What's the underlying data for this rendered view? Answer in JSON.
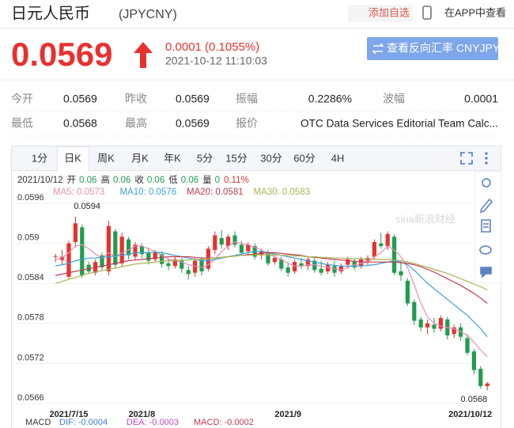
{
  "header": {
    "title": "日元人民币",
    "code": "(JPYCNY)",
    "add_watch": "添加自选",
    "app_link": "在APP中查看"
  },
  "quote": {
    "price": "0.0569",
    "change": "0.0001 (0.1055%)",
    "time": "2021-10-12 11:10:03",
    "reverse_button": "查看反向汇率 CNYJPY"
  },
  "stats": {
    "rows": [
      [
        {
          "label": "今开",
          "value": "0.0569"
        },
        {
          "label": "昨收",
          "value": "0.0569"
        },
        {
          "label": "振幅",
          "value": "0.2286%"
        },
        {
          "label": "波幅",
          "value": "0.0001"
        }
      ],
      [
        {
          "label": "最低",
          "value": "0.0568"
        },
        {
          "label": "最高",
          "value": "0.0569"
        },
        {
          "label": "报价",
          "value": "OTC Data Services Editorial Team Calc..."
        }
      ]
    ]
  },
  "tabs": [
    "1分",
    "日K",
    "周K",
    "月K",
    "年K",
    "5分",
    "15分",
    "30分",
    "60分",
    "4H"
  ],
  "watermark": "sina新浪财经",
  "chart_data": {
    "type": "candlestick",
    "info": {
      "date": "2021/10/12",
      "fields": [
        [
          "开",
          "0.06"
        ],
        [
          "高",
          "0.06"
        ],
        [
          "收",
          "0.06"
        ],
        [
          "低",
          "0.06"
        ],
        [
          "量",
          "0"
        ]
      ],
      "change": "0.11%"
    },
    "categories": [
      null,
      null,
      "2021/7/15",
      null,
      null,
      null,
      null,
      null,
      null,
      null,
      null,
      null,
      null,
      "2021/8",
      null,
      null,
      null,
      null,
      null,
      null,
      null,
      null,
      null,
      null,
      null,
      null,
      null,
      null,
      null,
      null,
      null,
      null,
      null,
      null,
      null,
      "2021/9",
      null,
      null,
      null,
      null,
      null,
      null,
      null,
      null,
      null,
      null,
      null,
      null,
      null,
      null,
      null,
      null,
      null,
      null,
      null,
      null,
      null,
      null,
      null,
      null,
      null,
      null,
      null,
      null,
      null,
      "2021/10/12"
    ],
    "open": [
      0.0588,
      0.05875,
      0.0585,
      0.05902,
      0.05924,
      0.05868,
      0.05856,
      0.05882,
      0.05858,
      0.05918,
      0.0587,
      0.05906,
      0.0588,
      0.05896,
      0.05886,
      0.05876,
      0.05884,
      0.0587,
      0.05866,
      0.05874,
      0.0586,
      0.05856,
      0.05876,
      0.05862,
      0.0589,
      0.05908,
      0.05896,
      0.05912,
      0.05898,
      0.05888,
      0.05896,
      0.05882,
      0.05886,
      0.05872,
      0.05876,
      0.05864,
      0.05858,
      0.0587,
      0.05866,
      0.05874,
      0.05862,
      0.05858,
      0.05866,
      0.05858,
      0.05868,
      0.05874,
      0.05866,
      0.05874,
      0.0588,
      0.059,
      0.05896,
      0.0591,
      0.05858,
      0.05844,
      0.05812,
      0.05786,
      0.05774,
      0.05778,
      0.05772,
      0.05786,
      0.05764,
      0.05774,
      0.05758,
      0.05738,
      0.05712,
      0.05686
    ],
    "high": [
      0.05884,
      0.0589,
      0.05904,
      0.0594,
      0.05928,
      0.05873,
      0.05876,
      0.05886,
      0.05934,
      0.05922,
      0.05916,
      0.0591,
      0.05902,
      0.059,
      0.05894,
      0.0589,
      0.05888,
      0.05878,
      0.0588,
      0.05878,
      0.05866,
      0.05878,
      0.0588,
      0.05896,
      0.05918,
      0.0592,
      0.05914,
      0.05918,
      0.05904,
      0.05902,
      0.059,
      0.05892,
      0.0589,
      0.05882,
      0.0588,
      0.05872,
      0.05876,
      0.05878,
      0.0588,
      0.05878,
      0.05874,
      0.05872,
      0.05874,
      0.0587,
      0.0588,
      0.05878,
      0.0588,
      0.05882,
      0.05906,
      0.05916,
      0.05918,
      0.05914,
      0.0587,
      0.05848,
      0.05816,
      0.0579,
      0.05786,
      0.05788,
      0.05792,
      0.0579,
      0.05778,
      0.0578,
      0.05764,
      0.05742,
      0.05716,
      0.05692
    ],
    "low": [
      0.05872,
      0.05868,
      0.05846,
      0.05894,
      0.05848,
      0.05854,
      0.05852,
      0.0586,
      0.05852,
      0.05862,
      0.05865,
      0.05876,
      0.05874,
      0.05878,
      0.05868,
      0.05872,
      0.05864,
      0.0586,
      0.05862,
      0.05856,
      0.05846,
      0.0585,
      0.05852,
      0.05858,
      0.05884,
      0.05892,
      0.0589,
      0.05894,
      0.05882,
      0.05882,
      0.05876,
      0.05876,
      0.05866,
      0.05868,
      0.05858,
      0.0585,
      0.05854,
      0.05862,
      0.0586,
      0.05856,
      0.05852,
      0.05854,
      0.0585,
      0.05854,
      0.05862,
      0.0586,
      0.05862,
      0.05868,
      0.05876,
      0.05892,
      0.0589,
      0.05852,
      0.05844,
      0.05806,
      0.05778,
      0.05768,
      0.05764,
      0.05766,
      0.05768,
      0.05756,
      0.05758,
      0.05754,
      0.05732,
      0.05704,
      0.05682,
      0.0568
    ],
    "close": [
      0.05881,
      0.0588,
      0.059,
      0.0593,
      0.05852,
      0.05858,
      0.05872,
      0.05864,
      0.05926,
      0.05868,
      0.0591,
      0.05882,
      0.05898,
      0.05884,
      0.05874,
      0.05886,
      0.05869,
      0.05866,
      0.05876,
      0.05862,
      0.05854,
      0.05874,
      0.05858,
      0.05892,
      0.05912,
      0.05898,
      0.0591,
      0.05898,
      0.05886,
      0.05898,
      0.0588,
      0.05888,
      0.0587,
      0.05878,
      0.05862,
      0.05856,
      0.05872,
      0.05866,
      0.05876,
      0.0586,
      0.05856,
      0.05868,
      0.05856,
      0.05866,
      0.05876,
      0.05864,
      0.05876,
      0.05878,
      0.05902,
      0.05896,
      0.05914,
      0.05856,
      0.05852,
      0.0581,
      0.05784,
      0.05774,
      0.0578,
      0.05772,
      0.05788,
      0.05762,
      0.05774,
      0.0576,
      0.05736,
      0.0571,
      0.05686,
      0.0569
    ],
    "colors": {
      "up": "#e8312f",
      "down": "#1f9d4c"
    },
    "series": [
      {
        "name": "MA5: 0.0573",
        "color": "#e58fb6",
        "values": [
          0.05876,
          0.05878,
          0.05886,
          0.05896,
          0.05898,
          0.05892,
          0.05884,
          0.05878,
          0.05886,
          0.0588,
          0.05886,
          0.0589,
          0.05896,
          0.05896,
          0.05892,
          0.05888,
          0.05882,
          0.05876,
          0.05874,
          0.05872,
          0.05868,
          0.05866,
          0.05864,
          0.05868,
          0.05876,
          0.05888,
          0.05896,
          0.05902,
          0.059,
          0.05898,
          0.05894,
          0.0589,
          0.05884,
          0.0588,
          0.05876,
          0.0587,
          0.05866,
          0.05866,
          0.05868,
          0.05868,
          0.05866,
          0.05864,
          0.05862,
          0.0586,
          0.05864,
          0.05868,
          0.0587,
          0.05872,
          0.0588,
          0.05886,
          0.05896,
          0.0589,
          0.0588,
          0.05864,
          0.05838,
          0.0581,
          0.0579,
          0.0578,
          0.05776,
          0.05774,
          0.05772,
          0.05768,
          0.05762,
          0.05752,
          0.0574,
          0.0573
        ]
      },
      {
        "name": "MA10: 0.0576",
        "color": "#3f9fd6",
        "values": [
          0.05866,
          0.05868,
          0.0587,
          0.05874,
          0.05876,
          0.05878,
          0.05878,
          0.05879,
          0.0588,
          0.05881,
          0.05882,
          0.05884,
          0.05886,
          0.05886,
          0.05886,
          0.05887,
          0.05886,
          0.05884,
          0.05882,
          0.0588,
          0.05878,
          0.05876,
          0.05874,
          0.05874,
          0.05876,
          0.05878,
          0.0588,
          0.05882,
          0.05884,
          0.05886,
          0.05888,
          0.05888,
          0.05886,
          0.05884,
          0.05882,
          0.0588,
          0.05878,
          0.05876,
          0.05874,
          0.05872,
          0.0587,
          0.05868,
          0.05867,
          0.05866,
          0.05866,
          0.05866,
          0.05866,
          0.05867,
          0.05868,
          0.0587,
          0.05872,
          0.05874,
          0.05872,
          0.05868,
          0.0586,
          0.0585,
          0.0584,
          0.05832,
          0.05824,
          0.05816,
          0.05808,
          0.058,
          0.05792,
          0.05782,
          0.05772,
          0.0576
        ]
      },
      {
        "name": "MA20: 0.0581",
        "color": "#c23b50",
        "values": [
          0.05852,
          0.05854,
          0.05856,
          0.05858,
          0.0586,
          0.05862,
          0.05864,
          0.05866,
          0.05868,
          0.0587,
          0.05872,
          0.05874,
          0.05875,
          0.05876,
          0.05877,
          0.05878,
          0.05879,
          0.0588,
          0.0588,
          0.0588,
          0.0588,
          0.05879,
          0.05878,
          0.05878,
          0.05878,
          0.05879,
          0.0588,
          0.05881,
          0.05882,
          0.05883,
          0.05884,
          0.05885,
          0.05886,
          0.05886,
          0.05885,
          0.05884,
          0.05883,
          0.05882,
          0.0588,
          0.05879,
          0.05878,
          0.05877,
          0.05876,
          0.05875,
          0.05874,
          0.05873,
          0.05872,
          0.05872,
          0.05872,
          0.05872,
          0.05872,
          0.05872,
          0.05871,
          0.0587,
          0.05868,
          0.05865,
          0.05861,
          0.05857,
          0.05852,
          0.05847,
          0.05842,
          0.05837,
          0.05831,
          0.05825,
          0.05818,
          0.0581
        ]
      },
      {
        "name": "MA30: 0.0583",
        "color": "#a8b552",
        "values": [
          0.0584,
          0.05843,
          0.05846,
          0.05849,
          0.05852,
          0.05855,
          0.05857,
          0.05859,
          0.05861,
          0.05863,
          0.05865,
          0.05867,
          0.05869,
          0.0587,
          0.05871,
          0.05872,
          0.05873,
          0.05874,
          0.05874,
          0.05875,
          0.05875,
          0.05876,
          0.05876,
          0.05877,
          0.05878,
          0.05879,
          0.0588,
          0.05881,
          0.05882,
          0.05882,
          0.05883,
          0.05883,
          0.05883,
          0.05883,
          0.05882,
          0.05882,
          0.05881,
          0.05881,
          0.0588,
          0.0588,
          0.05879,
          0.05879,
          0.05878,
          0.05878,
          0.05877,
          0.05877,
          0.05877,
          0.05876,
          0.05876,
          0.05876,
          0.05876,
          0.05875,
          0.05874,
          0.05872,
          0.0587,
          0.05867,
          0.05864,
          0.05861,
          0.05858,
          0.05855,
          0.05851,
          0.05847,
          0.05843,
          0.05839,
          0.05835,
          0.0583
        ]
      }
    ],
    "ylim": [
      0.0565,
      0.0597
    ],
    "yticks": [
      0.0566,
      0.0572,
      0.0578,
      0.0584,
      0.059,
      0.0596
    ],
    "grid": true,
    "high_label": 0.0594,
    "low_label": 0.0568,
    "macd": {
      "title": "MACD",
      "items": [
        {
          "text": "DIF: -0.0004",
          "color": "#3f7fd6"
        },
        {
          "text": "DEA: -0.0003",
          "color": "#c04ac8"
        },
        {
          "text": "MACD: -0.0002",
          "color": "#c23b50"
        }
      ]
    }
  }
}
